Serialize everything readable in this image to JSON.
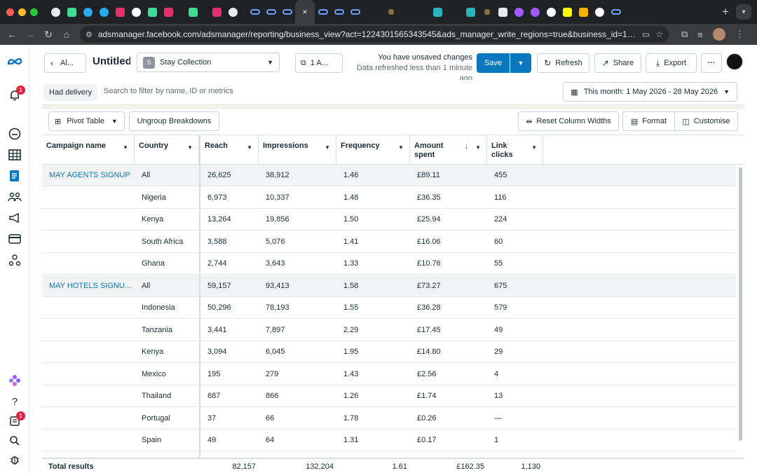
{
  "browser": {
    "url": "adsmanager.facebook.com/adsmanager/reporting/business_view?act=1224301565343545&ads_manager_write_regions=true&business_id=190905...",
    "active_tab_close": "×",
    "new_tab": "+"
  },
  "nav": {
    "notification_badge": "1",
    "bottom_badge": "1"
  },
  "toolbar": {
    "back_label": "Al...",
    "report_title": "Untitled",
    "account_initial": "S",
    "account_name": "Stay Collection",
    "view_label": "1 A...",
    "unsaved_text": "You have unsaved changes",
    "refreshed_text": "Data refreshed less than 1 minute ago",
    "save_label": "Save",
    "refresh_label": "Refresh",
    "share_label": "Share",
    "export_label": "Export",
    "more_label": "···"
  },
  "filterbar": {
    "chip_label": "Had delivery",
    "search_placeholder": "Search to filter by name, ID or metrics",
    "date_range": "This month: 1 May 2026 - 28 May 2026"
  },
  "table_toolbar": {
    "pivot_label": "Pivot Table",
    "ungroup_label": "Ungroup Breakdowns",
    "reset_label": "Reset Column Widths",
    "format_label": "Format",
    "customise_label": "Customise"
  },
  "table": {
    "headers": {
      "campaign": "Campaign name",
      "country": "Country",
      "reach": "Reach",
      "impressions": "Impressions",
      "frequency": "Frequency",
      "amount_spent_1": "Amount",
      "amount_spent_2": "spent",
      "link_clicks_1": "Link",
      "link_clicks_2": "clicks"
    },
    "campaigns": [
      "MAY AGENTS SIGNUP",
      "MAY HOTELS SIGNU..."
    ],
    "rows": [
      {
        "country": "All",
        "reach": "26,625",
        "impressions": "38,912",
        "frequency": "1.46",
        "spent": "£89.11",
        "clicks": "455"
      },
      {
        "country": "Nigeria",
        "reach": "6,973",
        "impressions": "10,337",
        "frequency": "1.48",
        "spent": "£36.35",
        "clicks": "116"
      },
      {
        "country": "Kenya",
        "reach": "13,264",
        "impressions": "19,856",
        "frequency": "1.50",
        "spent": "£25.94",
        "clicks": "224"
      },
      {
        "country": "South Africa",
        "reach": "3,588",
        "impressions": "5,076",
        "frequency": "1.41",
        "spent": "£16.06",
        "clicks": "60"
      },
      {
        "country": "Ghana",
        "reach": "2,744",
        "impressions": "3,643",
        "frequency": "1.33",
        "spent": "£10.76",
        "clicks": "55"
      },
      {
        "country": "All",
        "reach": "59,157",
        "impressions": "93,413",
        "frequency": "1.58",
        "spent": "£73.27",
        "clicks": "675"
      },
      {
        "country": "Indonesia",
        "reach": "50,296",
        "impressions": "78,193",
        "frequency": "1.55",
        "spent": "£36.28",
        "clicks": "579"
      },
      {
        "country": "Tanzania",
        "reach": "3,441",
        "impressions": "7,897",
        "frequency": "2.29",
        "spent": "£17.45",
        "clicks": "49"
      },
      {
        "country": "Kenya",
        "reach": "3,094",
        "impressions": "6,045",
        "frequency": "1.95",
        "spent": "£14.80",
        "clicks": "29"
      },
      {
        "country": "Mexico",
        "reach": "195",
        "impressions": "279",
        "frequency": "1.43",
        "spent": "£2.56",
        "clicks": "4"
      },
      {
        "country": "Thailand",
        "reach": "687",
        "impressions": "866",
        "frequency": "1.26",
        "spent": "£1.74",
        "clicks": "13"
      },
      {
        "country": "Portugal",
        "reach": "37",
        "impressions": "66",
        "frequency": "1.78",
        "spent": "£0.26",
        "clicks": "—"
      },
      {
        "country": "Spain",
        "reach": "49",
        "impressions": "64",
        "frequency": "1.31",
        "spent": "£0.17",
        "clicks": "1"
      }
    ],
    "totals": {
      "label": "Total results",
      "reach": "82,157",
      "impressions": "132,204",
      "frequency": "1.61",
      "spent": "£162.35",
      "clicks": "1,130"
    }
  },
  "colors": {
    "accent": "#0a78be",
    "highlight_row": "#f2f3f5",
    "badge": "#e41e3f"
  }
}
